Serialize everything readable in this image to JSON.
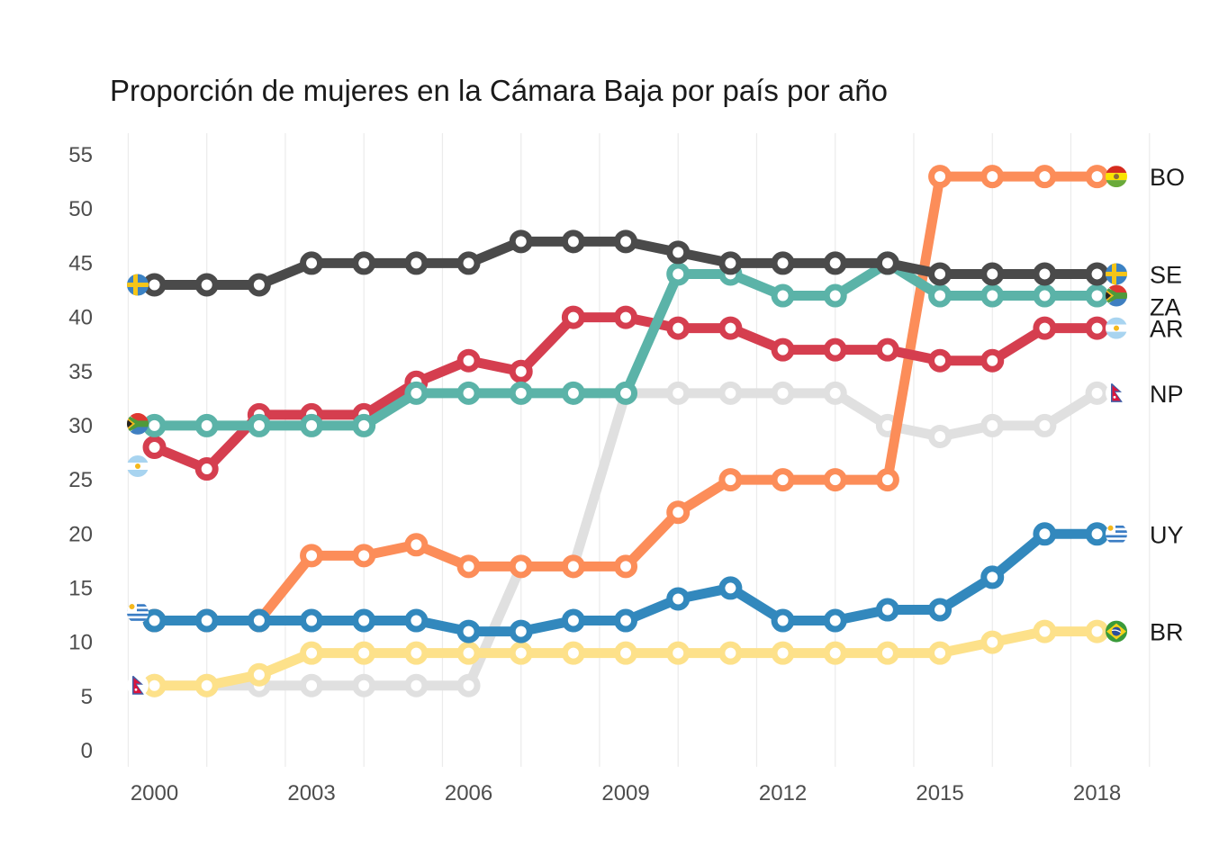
{
  "chart_data": {
    "type": "line",
    "title": "Proporción de mujeres en la Cámara Baja por país por año",
    "xlabel": "",
    "ylabel": "",
    "x": [
      2000,
      2001,
      2002,
      2003,
      2004,
      2005,
      2006,
      2007,
      2008,
      2009,
      2010,
      2011,
      2012,
      2013,
      2014,
      2015,
      2016,
      2017,
      2018
    ],
    "xticks": [
      "2000",
      "2003",
      "2006",
      "2009",
      "2012",
      "2015",
      "2018"
    ],
    "yticks": [
      "0",
      "5",
      "10",
      "15",
      "20",
      "25",
      "30",
      "35",
      "40",
      "45",
      "50",
      "55"
    ],
    "xlim": [
      1999.2,
      2019.4
    ],
    "ylim": [
      -1.5,
      57
    ],
    "grid": "vertical only",
    "legend": "none (country codes with flags at line ends)",
    "series": [
      {
        "name": "NP",
        "flag": "nepal",
        "color": "#e0e0e0",
        "values": [
          6,
          6,
          6,
          6,
          6,
          6,
          6,
          17,
          17,
          33,
          33,
          33,
          33,
          33,
          30,
          29,
          30,
          30,
          33
        ]
      },
      {
        "name": "BR",
        "flag": "brazil",
        "color": "#fde18a",
        "values": [
          6,
          6,
          7,
          9,
          9,
          9,
          9,
          9,
          9,
          9,
          9,
          9,
          9,
          9,
          9,
          9,
          10,
          11,
          11
        ]
      },
      {
        "name": "BO",
        "flag": "bolivia",
        "color": "#fc8d59",
        "values": [
          12,
          12,
          12,
          18,
          18,
          19,
          17,
          17,
          17,
          17,
          22,
          25,
          25,
          25,
          25,
          53,
          53,
          53,
          53
        ]
      },
      {
        "name": "UY",
        "flag": "uruguay",
        "color": "#3288bd",
        "values": [
          12,
          12,
          12,
          12,
          12,
          12,
          11,
          11,
          12,
          12,
          14,
          15,
          12,
          12,
          13,
          13,
          16,
          20,
          20
        ]
      },
      {
        "name": "AR",
        "flag": "argentina",
        "color": "#d53e4f",
        "values": [
          28,
          26,
          31,
          31,
          31,
          34,
          36,
          35,
          40,
          40,
          39,
          39,
          37,
          37,
          37,
          36,
          36,
          39,
          39
        ]
      },
      {
        "name": "ZA",
        "flag": "southafrica",
        "color": "#5bb3a8",
        "values": [
          30,
          30,
          30,
          30,
          30,
          33,
          33,
          33,
          33,
          33,
          44,
          44,
          42,
          42,
          45,
          42,
          42,
          42,
          42
        ]
      },
      {
        "name": "SE",
        "flag": "sweden",
        "color": "#4a4a4a",
        "values": [
          43,
          43,
          43,
          45,
          45,
          45,
          45,
          47,
          47,
          47,
          46,
          45,
          45,
          45,
          45,
          44,
          44,
          44,
          44
        ]
      }
    ]
  }
}
